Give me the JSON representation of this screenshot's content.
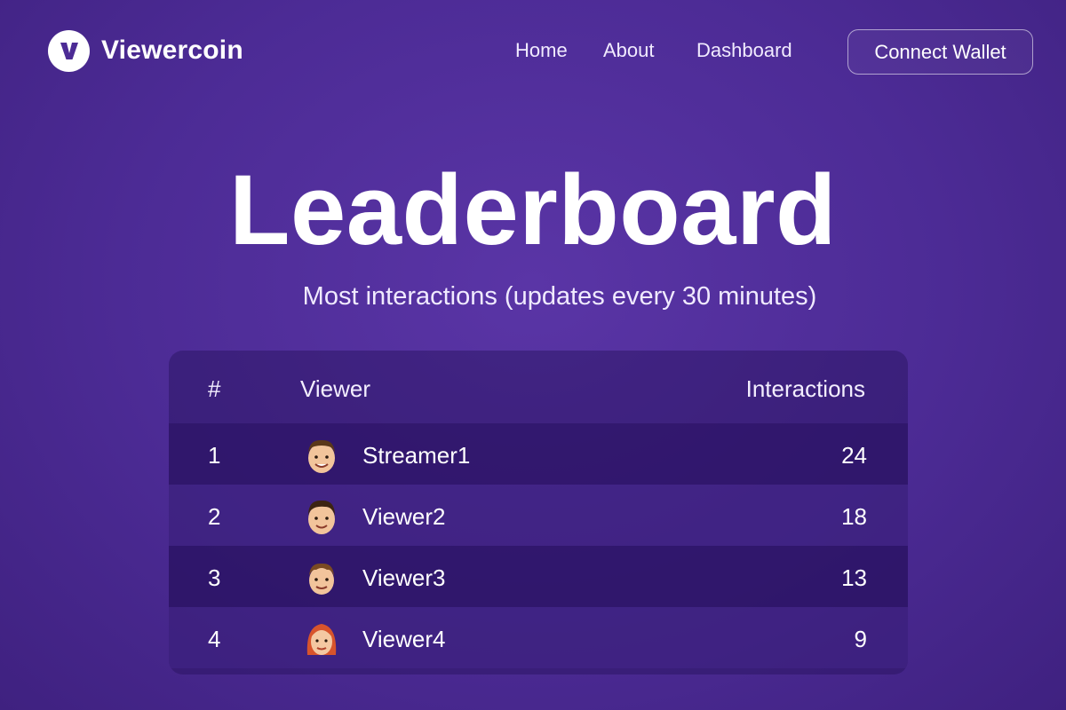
{
  "brand": {
    "name": "Viewercoin",
    "logo_letter": "V",
    "logo_icon": "v-logo-icon"
  },
  "nav": {
    "items": [
      {
        "label": "Home"
      },
      {
        "label": "About"
      },
      {
        "label": "Dashboard"
      }
    ],
    "connect_label": "Connect Wallet"
  },
  "page": {
    "title": "Leaderboard",
    "subtitle": "Most interactions (updates every 30 minutes)"
  },
  "table": {
    "headers": {
      "rank": "#",
      "viewer": "Viewer",
      "interactions": "Interactions"
    },
    "rows": [
      {
        "rank": "1",
        "name": "Streamer1",
        "interactions": "24",
        "avatar": "male-avatar-icon"
      },
      {
        "rank": "2",
        "name": "Viewer2",
        "interactions": "18",
        "avatar": "male-avatar-icon"
      },
      {
        "rank": "3",
        "name": "Viewer3",
        "interactions": "13",
        "avatar": "male-avatar-icon"
      },
      {
        "rank": "4",
        "name": "Viewer4",
        "interactions": "9",
        "avatar": "female-avatar-icon"
      }
    ]
  },
  "colors": {
    "background": "#4c2b95",
    "panel": "#2f1770",
    "text": "#ffffff"
  }
}
